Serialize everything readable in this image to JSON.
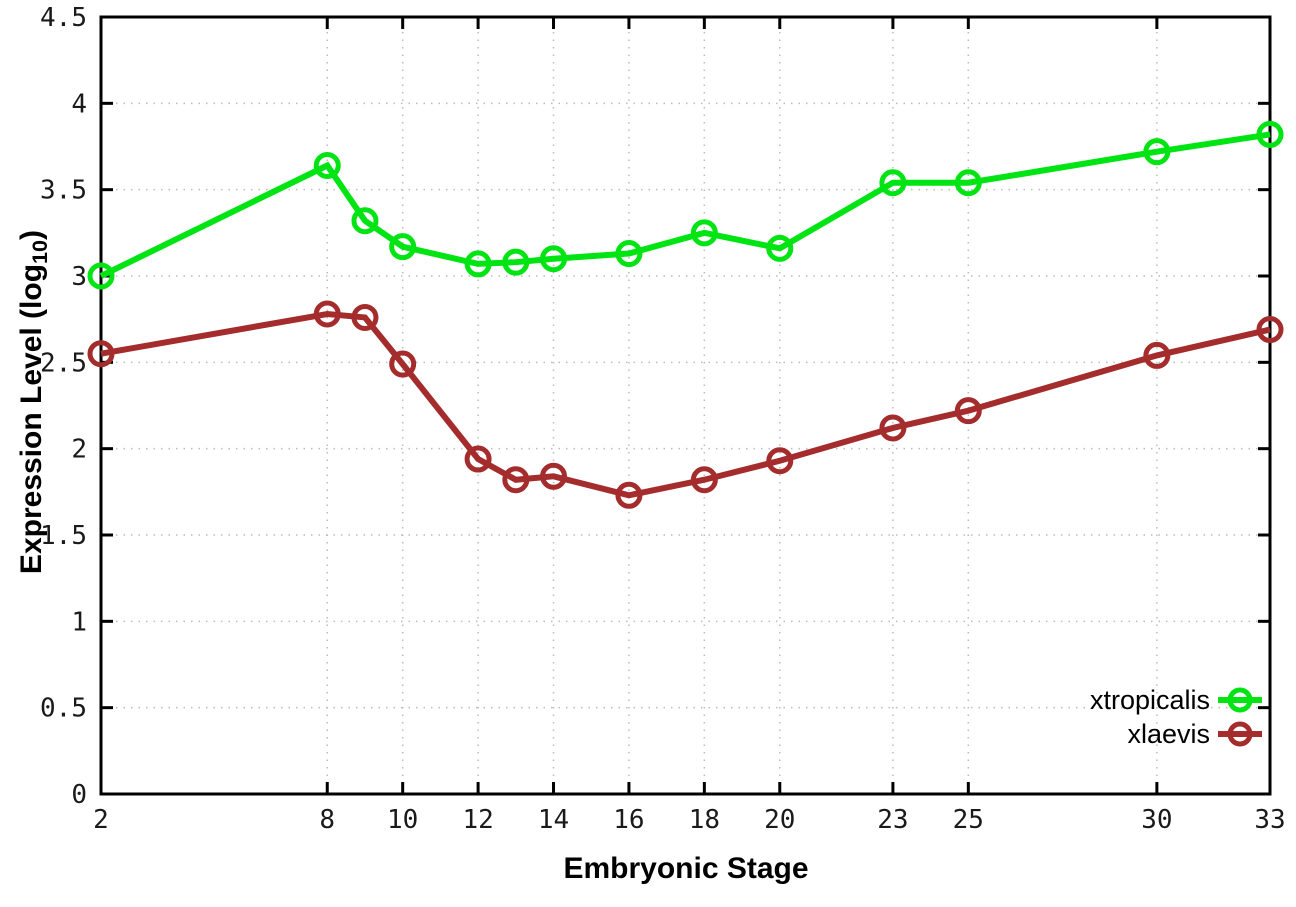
{
  "chart_data": {
    "type": "line",
    "title": "",
    "xlabel": "Embryonic Stage",
    "ylabel": "Expression Level (log10)",
    "ylabel_parts": {
      "pre": "Expression Level (log",
      "sub": "10",
      "post": ")"
    },
    "x": [
      2,
      8,
      9,
      10,
      12,
      13,
      14,
      16,
      18,
      20,
      23,
      25,
      30,
      33
    ],
    "xticks": [
      2,
      8,
      10,
      12,
      14,
      16,
      18,
      20,
      23,
      25,
      30,
      33
    ],
    "xlim": [
      2,
      33
    ],
    "ylim": [
      0,
      4.5
    ],
    "ytick_step": 0.5,
    "grid": true,
    "legend_position": "inside-bottom-right",
    "series": [
      {
        "name": "xtropicalis",
        "color": "#00e414",
        "values": [
          3.0,
          3.64,
          3.32,
          3.17,
          3.07,
          3.08,
          3.1,
          3.13,
          3.25,
          3.16,
          3.54,
          3.54,
          3.72,
          3.82
        ]
      },
      {
        "name": "xlaevis",
        "color": "#a52c2c",
        "values": [
          2.55,
          2.78,
          2.76,
          2.49,
          1.94,
          1.82,
          1.84,
          1.73,
          1.82,
          1.93,
          2.12,
          2.22,
          2.54,
          2.69
        ]
      }
    ],
    "styles": {
      "background": "#ffffff",
      "border_color": "#000000",
      "grid_color": "#bcbcbc",
      "tick_label_color": "#1a1a1a"
    }
  }
}
